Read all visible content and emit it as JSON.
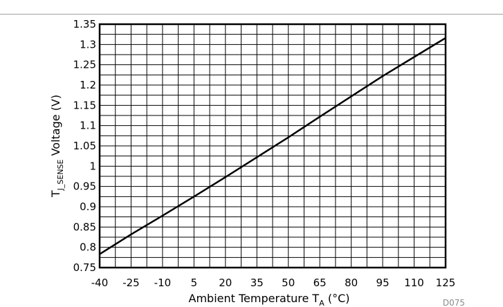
{
  "chart_data": {
    "type": "line",
    "xlabel": {
      "main": "Ambient Temperature T",
      "sub": "A",
      "unit": " (°C)"
    },
    "ylabel": {
      "main": "T",
      "sub": "J_SENSE",
      "rest": " Voltage (V)"
    },
    "x_ticks": [
      "-40",
      "-25",
      "-10",
      "5",
      "20",
      "35",
      "50",
      "65",
      "80",
      "95",
      "110",
      "125"
    ],
    "y_ticks": [
      "0.75",
      "0.8",
      "0.85",
      "0.9",
      "0.95",
      "1",
      "1.05",
      "1.1",
      "1.15",
      "1.2",
      "1.25",
      "1.3",
      "1.35"
    ],
    "xlim": [
      -40,
      125
    ],
    "ylim": [
      0.75,
      1.35
    ],
    "x_minor_step": 7.5,
    "y_minor_step": 0.025,
    "grid": true,
    "series": [
      {
        "x": [
          -40,
          -25,
          -10,
          5,
          20,
          35,
          50,
          65,
          80,
          95,
          110,
          125
        ],
        "y": [
          0.783,
          0.832,
          0.878,
          0.925,
          0.973,
          1.022,
          1.071,
          1.122,
          1.172,
          1.222,
          1.269,
          1.316
        ]
      }
    ],
    "figure_code": "D075"
  }
}
